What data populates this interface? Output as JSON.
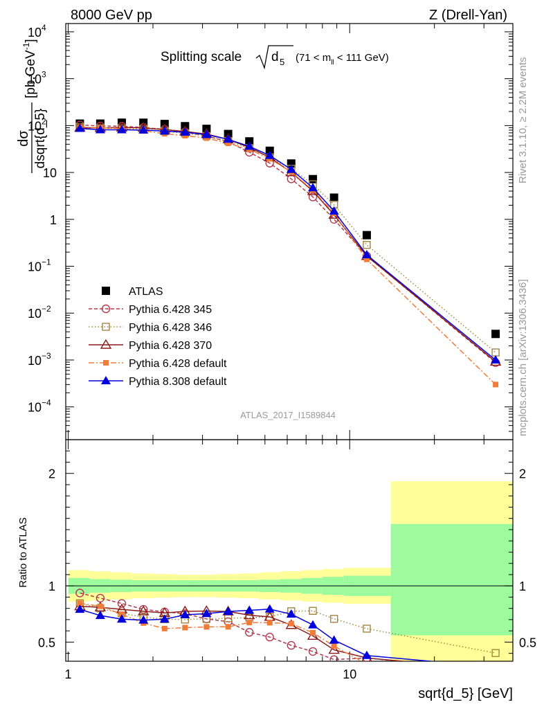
{
  "header": {
    "left": "8000 GeV pp",
    "right": "Z (Drell-Yan)"
  },
  "labels": {
    "title_main": "Splitting scale",
    "title_var": "d",
    "title_sub": "5",
    "title_range": "(71 < m",
    "title_range_sub": "ll",
    "title_range_end": " < 111 GeV)",
    "ylabel_num": "dσ",
    "ylabel_den": "dsqrt{d_5}",
    "ylabel_unit": "[pb,GeV",
    "ylabel_unit_sup": "-1",
    "ylabel_unit_end": "]",
    "ratio_ylabel": "Ratio to ATLAS",
    "xlabel": "sqrt{d_5} [GeV]",
    "analysis_id": "ATLAS_2017_I1589844",
    "side_rivet": "Rivet 3.1.10, ≥ 2.2M events",
    "side_mcplots": "mcplots.cern.ch [arXiv:1306.3436]"
  },
  "axis_ticks": {
    "top_y": [
      {
        "base": "10",
        "exp": "4",
        "value": 10000
      },
      {
        "base": "10",
        "exp": "3",
        "value": 1000
      },
      {
        "base": "10",
        "exp": "2",
        "value": 100
      },
      {
        "base": "10",
        "exp": "",
        "value": 10
      },
      {
        "base": "1",
        "exp": "",
        "value": 1
      },
      {
        "base": "10",
        "exp": "−1",
        "value": 0.1
      },
      {
        "base": "10",
        "exp": "−2",
        "value": 0.01
      },
      {
        "base": "10",
        "exp": "−3",
        "value": 0.001
      },
      {
        "base": "10",
        "exp": "−4",
        "value": 0.0001
      }
    ],
    "ratio_y": [
      {
        "label": "0.5",
        "value": 0.5
      },
      {
        "label": "1",
        "value": 1
      },
      {
        "label": "2",
        "value": 2
      }
    ],
    "x": [
      {
        "label": "1",
        "value": 1
      },
      {
        "label": "10",
        "value": 10
      }
    ]
  },
  "chart_data": {
    "type": "scatter",
    "x_scale": "log",
    "y_scale": "log",
    "xlim": [
      0.98,
      38
    ],
    "ylim": [
      2e-05,
      15000
    ],
    "ratio_ylim": [
      0.33,
      2.3
    ],
    "grid": false,
    "legend_position": "bottom-left",
    "x": [
      1.1,
      1.3,
      1.55,
      1.85,
      2.2,
      2.6,
      3.1,
      3.7,
      4.4,
      5.2,
      6.2,
      7.4,
      8.8,
      11.5,
      33
    ],
    "bin_edges": [
      1.0,
      1.19,
      1.41,
      1.68,
      2.0,
      2.38,
      2.83,
      3.36,
      4.0,
      4.76,
      5.66,
      6.73,
      8.0,
      9.51,
      14.0,
      38.0
    ],
    "series": [
      {
        "name": "ATLAS",
        "style": "data",
        "color": "#000000",
        "marker": "square-filled",
        "values": [
          110,
          110,
          115,
          115,
          108,
          97,
          85,
          66,
          46,
          29,
          15.5,
          7.2,
          2.9,
          0.46,
          0.0036
        ]
      },
      {
        "name": "Pythia 6.428 345",
        "style": "mc",
        "color": "#b03a4e",
        "dash": "5,3",
        "marker": "circle-open",
        "values": [
          103,
          98,
          97,
          91,
          83,
          73,
          60,
          45,
          27,
          15.8,
          7.3,
          3.0,
          1.0,
          0.165,
          0.00088
        ]
      },
      {
        "name": "Pythia 6.428 346",
        "style": "mc",
        "color": "#a2853f",
        "dash": "1.5,3",
        "marker": "square-open",
        "values": [
          93,
          88,
          87,
          83,
          76,
          68,
          60,
          47,
          33,
          21,
          12.0,
          5.6,
          2.05,
          0.285,
          0.00145
        ]
      },
      {
        "name": "Pythia 6.428 370",
        "style": "mc",
        "color": "#8b1a1a",
        "dash": "",
        "marker": "triangle-open",
        "values": [
          90,
          89,
          91,
          89,
          82,
          75,
          66,
          51,
          34,
          21,
          10.1,
          4.0,
          1.25,
          0.165,
          0.00092
        ]
      },
      {
        "name": "Pythia 6.428 default",
        "style": "mc",
        "color": "#f07c3a",
        "dash": "8,3,2,3",
        "marker": "square-filled-small",
        "values": [
          93,
          90,
          86,
          77,
          67,
          61,
          54,
          42,
          31,
          19.5,
          10.3,
          4.2,
          1.35,
          0.14,
          0.0003
        ]
      },
      {
        "name": "Pythia 8.308 default",
        "style": "mc",
        "color": "#0000dd",
        "dash": "",
        "marker": "triangle-filled",
        "values": [
          87,
          81,
          81,
          80,
          76,
          72,
          64,
          51,
          36,
          23,
          11.6,
          4.7,
          1.5,
          0.175,
          0.001
        ]
      }
    ],
    "ratio_bands": {
      "inner_color": "#9dfb9d",
      "outer_color": "#ffff99",
      "inner": [
        [
          0.93,
          1.07
        ],
        [
          0.94,
          1.06
        ],
        [
          0.945,
          1.055
        ],
        [
          0.95,
          1.05
        ],
        [
          0.95,
          1.05
        ],
        [
          0.95,
          1.05
        ],
        [
          0.95,
          1.05
        ],
        [
          0.95,
          1.05
        ],
        [
          0.95,
          1.05
        ],
        [
          0.945,
          1.055
        ],
        [
          0.94,
          1.06
        ],
        [
          0.93,
          1.07
        ],
        [
          0.92,
          1.08
        ],
        [
          0.91,
          1.09
        ],
        [
          0.56,
          1.55
        ]
      ],
      "outer": [
        [
          0.86,
          1.14
        ],
        [
          0.87,
          1.13
        ],
        [
          0.88,
          1.12
        ],
        [
          0.89,
          1.11
        ],
        [
          0.895,
          1.105
        ],
        [
          0.9,
          1.1
        ],
        [
          0.9,
          1.1
        ],
        [
          0.895,
          1.105
        ],
        [
          0.89,
          1.11
        ],
        [
          0.88,
          1.12
        ],
        [
          0.87,
          1.13
        ],
        [
          0.86,
          1.14
        ],
        [
          0.85,
          1.15
        ],
        [
          0.84,
          1.16
        ],
        [
          0.33,
          1.93
        ]
      ]
    }
  }
}
